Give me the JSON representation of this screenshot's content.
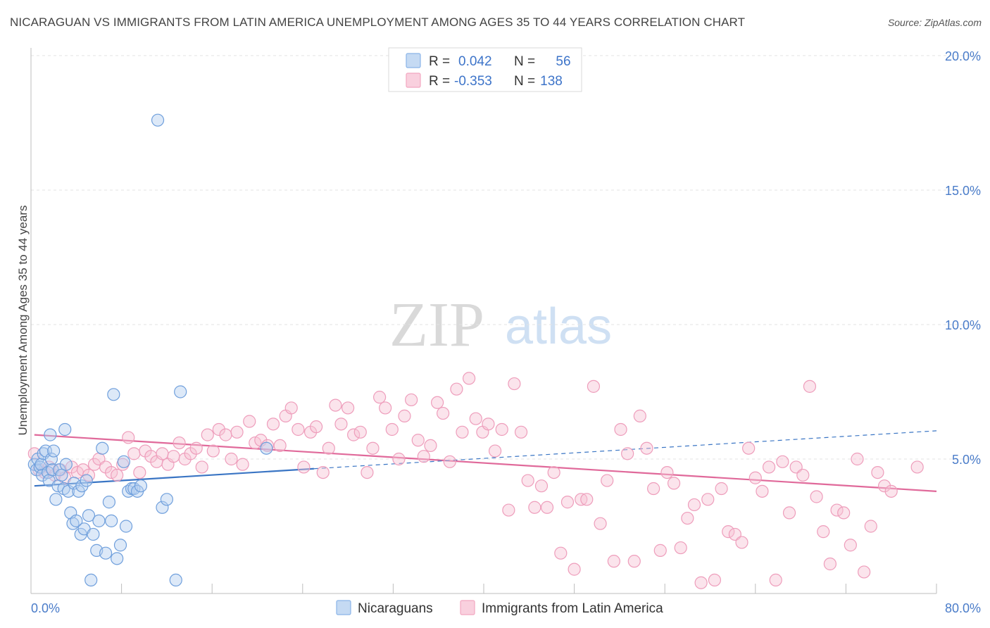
{
  "header": {
    "title": "NICARAGUAN VS IMMIGRANTS FROM LATIN AMERICA UNEMPLOYMENT AMONG AGES 35 TO 44 YEARS CORRELATION CHART",
    "source": "Source: ZipAtlas.com"
  },
  "watermark": {
    "zip": "ZIP",
    "atlas": "atlas"
  },
  "legend": {
    "rows": [
      {
        "r_label": "R =",
        "r_value": "0.042",
        "n_label": "N =",
        "n_value": "56",
        "color": "#8ab4e8"
      },
      {
        "r_label": "R =",
        "r_value": "-0.353",
        "n_label": "N =",
        "n_value": "138",
        "color": "#f2a7c0"
      }
    ]
  },
  "bottom_legend": [
    {
      "label": "Nicaraguans",
      "color": "#8ab4e8"
    },
    {
      "label": "Immigrants from Latin America",
      "color": "#f2a7c0"
    }
  ],
  "chart_data": {
    "type": "scatter",
    "title": "NICARAGUAN VS IMMIGRANTS FROM LATIN AMERICA UNEMPLOYMENT AMONG AGES 35 TO 44 YEARS CORRELATION CHART",
    "xlabel": "",
    "ylabel": "Unemployment Among Ages 35 to 44 years",
    "xlim": [
      0,
      80
    ],
    "ylim": [
      0,
      20
    ],
    "x_tick_labels": [
      "0.0%",
      "80.0%"
    ],
    "y_ticks": [
      5,
      10,
      15,
      20
    ],
    "y_tick_labels": [
      "5.0%",
      "10.0%",
      "15.0%",
      "20.0%"
    ],
    "grid": true,
    "legend_position": "top-center",
    "colors": {
      "blue": "#8ab4e8",
      "blue_line": "#3a75c4",
      "pink": "#f2a7c0",
      "pink_line": "#e0699a"
    },
    "series": [
      {
        "name": "Nicaraguans",
        "color": "#8ab4e8",
        "trend": {
          "x": [
            0.3,
            25
          ],
          "y": [
            4.0,
            4.64
          ],
          "dashed_to": [
            80,
            6.05
          ]
        },
        "x": [
          0.3,
          0.5,
          0.6,
          0.8,
          0.9,
          1.0,
          1.1,
          1.3,
          1.5,
          1.6,
          1.7,
          1.8,
          1.9,
          2.0,
          2.2,
          2.4,
          2.5,
          2.7,
          2.9,
          3.0,
          3.1,
          3.3,
          3.5,
          3.7,
          3.8,
          4.0,
          4.2,
          4.4,
          4.5,
          4.7,
          4.9,
          5.1,
          5.3,
          5.5,
          5.8,
          6.0,
          6.3,
          6.6,
          6.9,
          7.1,
          7.3,
          7.6,
          7.9,
          8.2,
          8.4,
          8.6,
          8.9,
          9.1,
          9.4,
          9.7,
          11.2,
          11.6,
          12.0,
          12.8,
          13.2,
          20.8
        ],
        "y": [
          4.8,
          4.6,
          5.0,
          4.7,
          4.8,
          4.4,
          5.2,
          5.3,
          4.5,
          4.2,
          5.9,
          5.0,
          4.6,
          5.3,
          3.5,
          4.0,
          4.6,
          4.4,
          3.9,
          6.1,
          4.8,
          3.8,
          3.0,
          2.6,
          4.1,
          2.7,
          3.8,
          2.2,
          4.0,
          2.4,
          4.2,
          2.9,
          0.5,
          2.2,
          1.6,
          2.7,
          5.4,
          1.5,
          3.4,
          2.7,
          7.4,
          1.3,
          1.8,
          4.9,
          2.5,
          3.8,
          3.9,
          3.9,
          3.8,
          4.0,
          17.6,
          3.2,
          3.5,
          0.5,
          7.5,
          5.4
        ]
      },
      {
        "name": "Immigrants from Latin America",
        "color": "#f2a7c0",
        "trend": {
          "x": [
            0.3,
            80
          ],
          "y": [
            5.9,
            3.8
          ]
        },
        "x": [
          0.3,
          0.7,
          1.2,
          1.6,
          2.1,
          2.6,
          3.0,
          3.6,
          4.1,
          4.6,
          5.1,
          5.6,
          6.0,
          6.6,
          7.1,
          7.6,
          8.1,
          8.6,
          9.1,
          9.6,
          10.1,
          10.6,
          11.1,
          11.6,
          12.1,
          12.6,
          13.1,
          13.6,
          14.1,
          14.6,
          15.1,
          15.6,
          16.1,
          16.6,
          17.2,
          17.7,
          18.2,
          18.7,
          19.3,
          19.8,
          20.3,
          20.9,
          21.4,
          22.0,
          22.5,
          23.0,
          23.6,
          24.1,
          24.7,
          25.2,
          25.8,
          26.3,
          26.9,
          27.4,
          28.0,
          28.5,
          29.1,
          29.7,
          30.2,
          30.8,
          31.3,
          31.9,
          32.5,
          33.0,
          33.6,
          34.2,
          34.7,
          35.3,
          35.9,
          36.4,
          37.0,
          37.6,
          38.1,
          38.7,
          39.3,
          39.9,
          40.4,
          41.0,
          41.6,
          42.2,
          42.7,
          43.3,
          43.9,
          44.5,
          45.1,
          45.6,
          46.2,
          46.8,
          47.4,
          48.0,
          48.6,
          49.1,
          49.7,
          50.3,
          50.9,
          51.5,
          52.1,
          52.7,
          53.3,
          53.8,
          54.4,
          55.0,
          55.6,
          56.2,
          56.8,
          57.4,
          58.0,
          58.6,
          59.2,
          59.8,
          60.4,
          61.0,
          61.6,
          62.2,
          62.8,
          63.4,
          64.0,
          64.6,
          65.2,
          65.8,
          66.4,
          67.0,
          67.6,
          68.2,
          68.8,
          69.4,
          70.0,
          70.6,
          71.2,
          71.8,
          72.4,
          73.0,
          73.6,
          74.2,
          74.8,
          75.4,
          76.0,
          78.3
        ],
        "y": [
          5.2,
          4.6,
          4.5,
          4.7,
          4.4,
          4.6,
          4.3,
          4.7,
          4.5,
          4.6,
          4.4,
          4.8,
          5.0,
          4.7,
          4.5,
          4.4,
          4.8,
          5.8,
          5.2,
          4.5,
          5.3,
          5.1,
          4.9,
          5.2,
          4.8,
          5.1,
          5.6,
          5.0,
          5.2,
          5.4,
          4.7,
          5.9,
          5.3,
          6.1,
          5.9,
          5.0,
          6.0,
          4.8,
          6.4,
          5.6,
          5.7,
          5.5,
          6.3,
          5.5,
          6.6,
          6.9,
          6.1,
          4.7,
          6.0,
          6.2,
          4.5,
          5.4,
          7.0,
          6.3,
          6.9,
          5.9,
          6.0,
          4.5,
          5.4,
          7.3,
          6.9,
          6.1,
          5.0,
          6.6,
          7.2,
          5.7,
          5.1,
          5.5,
          7.1,
          6.7,
          4.9,
          7.6,
          6.0,
          8.0,
          6.5,
          6.0,
          6.3,
          5.3,
          6.1,
          3.1,
          7.8,
          6.0,
          4.2,
          3.2,
          4.0,
          3.2,
          4.5,
          1.5,
          3.4,
          0.9,
          3.5,
          3.5,
          7.7,
          2.6,
          4.2,
          1.2,
          6.1,
          5.2,
          1.2,
          6.6,
          5.4,
          3.9,
          1.6,
          4.5,
          4.1,
          1.7,
          2.8,
          3.3,
          0.4,
          3.5,
          0.5,
          3.9,
          2.3,
          2.2,
          1.9,
          5.4,
          4.3,
          3.8,
          4.7,
          0.5,
          4.9,
          3.0,
          4.7,
          4.4,
          7.7,
          3.6,
          2.3,
          1.1,
          3.1,
          3.0,
          1.8,
          5.0,
          0.8,
          2.5,
          4.5,
          4.0,
          3.8,
          4.7
        ]
      }
    ]
  }
}
